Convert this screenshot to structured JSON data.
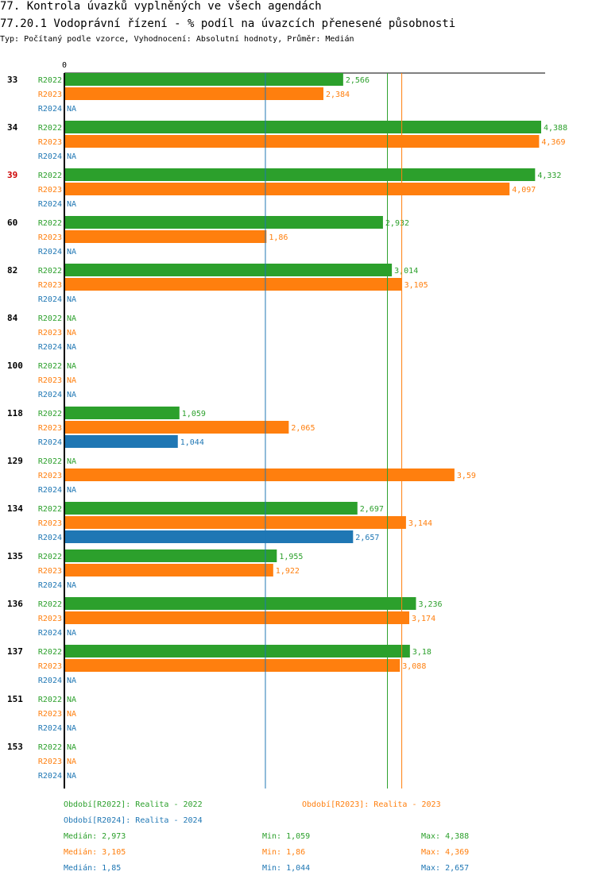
{
  "title_line1": "77. Kontrola úvazků vyplněných ve všech agendách",
  "title_line2": "77.20.1 Vodoprávní řízení - % podíl na úvazcích přenesené působnosti",
  "subtitle": "Typ: Počítaný podle vzorce, Vyhodnocení: Absolutní hodnoty, Průměr: Medián",
  "colors": {
    "R2022": "#2ca02c",
    "R2023": "#ff7f0e",
    "R2024": "#1f77b4",
    "highlight": "#cc0000",
    "text": "#000000"
  },
  "chart_data": {
    "type": "bar",
    "orientation": "horizontal",
    "axis_zero_label": "0",
    "xlim": [
      0,
      4.388
    ],
    "na_label": "NA",
    "series_names": [
      "R2022",
      "R2023",
      "R2024"
    ],
    "groups": [
      {
        "label": "33",
        "highlight": false,
        "values": [
          2.566,
          2.384,
          null
        ],
        "labels": [
          "2,566",
          "2,384",
          "NA"
        ]
      },
      {
        "label": "34",
        "highlight": false,
        "values": [
          4.388,
          4.369,
          null
        ],
        "labels": [
          "4,388",
          "4,369",
          "NA"
        ]
      },
      {
        "label": "39",
        "highlight": true,
        "values": [
          4.332,
          4.097,
          null
        ],
        "labels": [
          "4,332",
          "4,097",
          "NA"
        ]
      },
      {
        "label": "60",
        "highlight": false,
        "values": [
          2.932,
          1.86,
          null
        ],
        "labels": [
          "2,932",
          "1,86",
          "NA"
        ]
      },
      {
        "label": "82",
        "highlight": false,
        "values": [
          3.014,
          3.105,
          null
        ],
        "labels": [
          "3,014",
          "3,105",
          "NA"
        ]
      },
      {
        "label": "84",
        "highlight": false,
        "values": [
          null,
          null,
          null
        ],
        "labels": [
          "NA",
          "NA",
          "NA"
        ]
      },
      {
        "label": "100",
        "highlight": false,
        "values": [
          null,
          null,
          null
        ],
        "labels": [
          "NA",
          "NA",
          "NA"
        ]
      },
      {
        "label": "118",
        "highlight": false,
        "values": [
          1.059,
          2.065,
          1.044
        ],
        "labels": [
          "1,059",
          "2,065",
          "1,044"
        ]
      },
      {
        "label": "129",
        "highlight": false,
        "values": [
          null,
          3.59,
          null
        ],
        "labels": [
          "NA",
          "3,59",
          "NA"
        ]
      },
      {
        "label": "134",
        "highlight": false,
        "values": [
          2.697,
          3.144,
          2.657
        ],
        "labels": [
          "2,697",
          "3,144",
          "2,657"
        ]
      },
      {
        "label": "135",
        "highlight": false,
        "values": [
          1.955,
          1.922,
          null
        ],
        "labels": [
          "1,955",
          "1,922",
          "NA"
        ]
      },
      {
        "label": "136",
        "highlight": false,
        "values": [
          3.236,
          3.174,
          null
        ],
        "labels": [
          "3,236",
          "3,174",
          "NA"
        ]
      },
      {
        "label": "137",
        "highlight": false,
        "values": [
          3.18,
          3.088,
          null
        ],
        "labels": [
          "3,18",
          "3,088",
          "NA"
        ]
      },
      {
        "label": "151",
        "highlight": false,
        "values": [
          null,
          null,
          null
        ],
        "labels": [
          "NA",
          "NA",
          "NA"
        ]
      },
      {
        "label": "153",
        "highlight": false,
        "values": [
          null,
          null,
          null
        ],
        "labels": [
          "NA",
          "NA",
          "NA"
        ]
      }
    ],
    "median_lines": [
      {
        "series": "R2022",
        "value": 2.973
      },
      {
        "series": "R2023",
        "value": 3.105
      },
      {
        "series": "R2024",
        "value": 1.85
      }
    ]
  },
  "legend": {
    "r2022": "Období[R2022]: Realita - 2022",
    "r2023": "Období[R2023]: Realita - 2023",
    "r2024": "Období[R2024]: Realita - 2024"
  },
  "stats": [
    {
      "median": "Medián: 2,973",
      "min": "Min: 1,059",
      "max": "Max: 4,388"
    },
    {
      "median": "Medián: 3,105",
      "min": "Min: 1,86",
      "max": "Max: 4,369"
    },
    {
      "median": "Medián: 1,85",
      "min": "Min: 1,044",
      "max": "Max: 2,657"
    }
  ]
}
